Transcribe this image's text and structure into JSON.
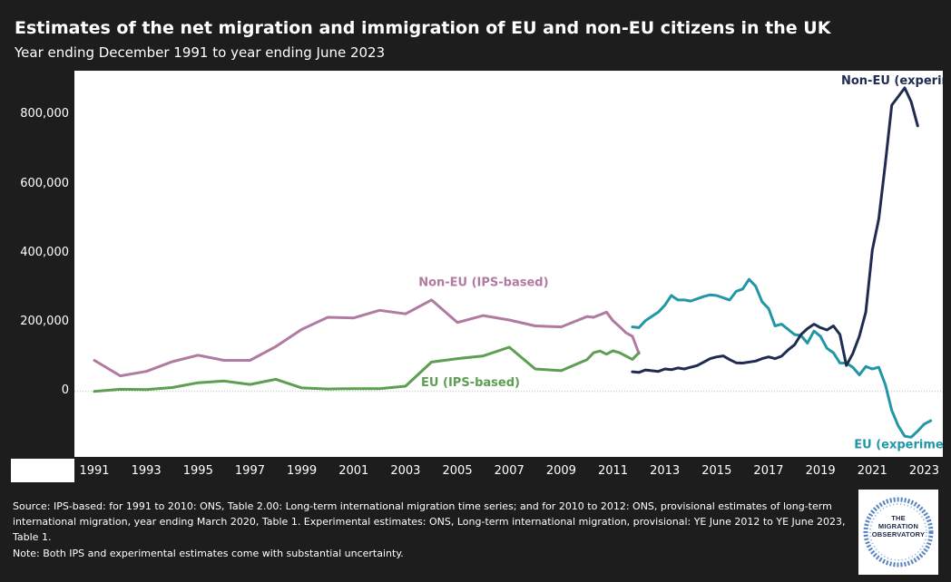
{
  "title": "Estimates of the net migration and immigration of EU and non-EU citizens in the UK",
  "subtitle": "Year ending December 1991 to year ending June 2023",
  "source": "Source: IPS-based: for 1991 to 2010: ONS, Table 2.00: Long-term international migration time series; and for 2010 to 2012: ONS, provisional estimates of long-term international migration, year ending March 2020, Table 1. Experimental estimates: ONS, Long-term international migration, provisional: YE June 2012 to YE June 2023, Table 1.",
  "note": "Note: Both IPS and experimental estimates come with substantial uncertainty.",
  "logo": {
    "line1": "THE",
    "line2": "MIGRATION",
    "line3": "OBSERVATORY"
  },
  "colors": {
    "non_eu_ips": "#b07aa1",
    "eu_ips": "#5d9e52",
    "eu_experimental": "#2196a6",
    "non_eu_experimental": "#1f2c52",
    "plot_bg": "#ffffff",
    "page_bg": "#1d1d1d"
  },
  "chart_data": {
    "type": "line",
    "title": "Estimates of the net migration and immigration of EU and non-EU citizens in the UK",
    "subtitle": "Year ending December 1991 to year ending June 2023",
    "xlabel": "",
    "ylabel": "",
    "xlim": [
      1991,
      2023.3
    ],
    "ylim": [
      -190000,
      930000
    ],
    "yticks": [
      0,
      200000,
      400000,
      600000,
      800000
    ],
    "ytick_labels": [
      "0",
      "200,000",
      "400,000",
      "600,000",
      "800,000"
    ],
    "xticks": [
      1991,
      1993,
      1995,
      1997,
      1999,
      2001,
      2003,
      2005,
      2007,
      2009,
      2011,
      2013,
      2015,
      2017,
      2019,
      2021,
      2023
    ],
    "grid": false,
    "zero_line": true,
    "series": [
      {
        "name": "Non-EU (IPS-based)",
        "color": "#b07aa1",
        "points": [
          [
            1991,
            90000
          ],
          [
            1992,
            45000
          ],
          [
            1993,
            58000
          ],
          [
            1994,
            86000
          ],
          [
            1995,
            105000
          ],
          [
            1996,
            90000
          ],
          [
            1997,
            90000
          ],
          [
            1998,
            130000
          ],
          [
            1999,
            180000
          ],
          [
            2000,
            215000
          ],
          [
            2001,
            213000
          ],
          [
            2002,
            235000
          ],
          [
            2003,
            225000
          ],
          [
            2004,
            265000
          ],
          [
            2005,
            200000
          ],
          [
            2006,
            220000
          ],
          [
            2007,
            207000
          ],
          [
            2008,
            190000
          ],
          [
            2009,
            187000
          ],
          [
            2010,
            217000
          ],
          [
            2010.25,
            215000
          ],
          [
            2010.75,
            230000
          ],
          [
            2011,
            205000
          ],
          [
            2011.25,
            188000
          ],
          [
            2011.5,
            170000
          ],
          [
            2011.75,
            160000
          ],
          [
            2012,
            110000
          ]
        ]
      },
      {
        "name": "EU (IPS-based)",
        "color": "#5d9e52",
        "points": [
          [
            1991,
            0
          ],
          [
            1992,
            6000
          ],
          [
            1993,
            5000
          ],
          [
            1994,
            11000
          ],
          [
            1995,
            25000
          ],
          [
            1996,
            30000
          ],
          [
            1997,
            20000
          ],
          [
            1998,
            35000
          ],
          [
            1999,
            10000
          ],
          [
            2000,
            7000
          ],
          [
            2001,
            8000
          ],
          [
            2002,
            8000
          ],
          [
            2003,
            15000
          ],
          [
            2004,
            85000
          ],
          [
            2005,
            95000
          ],
          [
            2006,
            103000
          ],
          [
            2007,
            128000
          ],
          [
            2008,
            65000
          ],
          [
            2009,
            60000
          ],
          [
            2010,
            92000
          ],
          [
            2010.25,
            112000
          ],
          [
            2010.5,
            117000
          ],
          [
            2010.75,
            108000
          ],
          [
            2011,
            118000
          ],
          [
            2011.25,
            112000
          ],
          [
            2011.75,
            93000
          ],
          [
            2012,
            112000
          ]
        ]
      },
      {
        "name": "EU (experimental)",
        "color": "#2196a6",
        "points": [
          [
            2011.75,
            187000
          ],
          [
            2012,
            185000
          ],
          [
            2012.25,
            205000
          ],
          [
            2012.75,
            230000
          ],
          [
            2013,
            250000
          ],
          [
            2013.25,
            278000
          ],
          [
            2013.5,
            265000
          ],
          [
            2013.75,
            265000
          ],
          [
            2014,
            262000
          ],
          [
            2014.5,
            275000
          ],
          [
            2014.75,
            280000
          ],
          [
            2015,
            278000
          ],
          [
            2015.5,
            265000
          ],
          [
            2015.75,
            290000
          ],
          [
            2016,
            297000
          ],
          [
            2016.25,
            325000
          ],
          [
            2016.5,
            305000
          ],
          [
            2016.75,
            260000
          ],
          [
            2017,
            240000
          ],
          [
            2017.25,
            190000
          ],
          [
            2017.5,
            195000
          ],
          [
            2018,
            165000
          ],
          [
            2018.25,
            162000
          ],
          [
            2018.5,
            140000
          ],
          [
            2018.75,
            175000
          ],
          [
            2019,
            160000
          ],
          [
            2019.25,
            125000
          ],
          [
            2019.5,
            112000
          ],
          [
            2019.75,
            82000
          ],
          [
            2020,
            82000
          ],
          [
            2020.25,
            70000
          ],
          [
            2020.5,
            48000
          ],
          [
            2020.75,
            72000
          ],
          [
            2021,
            65000
          ],
          [
            2021.25,
            70000
          ],
          [
            2021.5,
            20000
          ],
          [
            2021.75,
            -55000
          ],
          [
            2022,
            -100000
          ],
          [
            2022.25,
            -130000
          ],
          [
            2022.5,
            -133000
          ],
          [
            2022.75,
            -115000
          ],
          [
            2023,
            -95000
          ],
          [
            2023.25,
            -85000
          ]
        ]
      },
      {
        "name": "Non-EU (experimental)",
        "color": "#1f2c52",
        "points": [
          [
            2011.75,
            57000
          ],
          [
            2012,
            55000
          ],
          [
            2012.25,
            62000
          ],
          [
            2012.75,
            58000
          ],
          [
            2013,
            65000
          ],
          [
            2013.25,
            63000
          ],
          [
            2013.5,
            68000
          ],
          [
            2013.75,
            65000
          ],
          [
            2014,
            70000
          ],
          [
            2014.25,
            75000
          ],
          [
            2014.5,
            85000
          ],
          [
            2014.75,
            95000
          ],
          [
            2015,
            100000
          ],
          [
            2015.25,
            103000
          ],
          [
            2015.5,
            92000
          ],
          [
            2015.75,
            83000
          ],
          [
            2016,
            82000
          ],
          [
            2016.5,
            88000
          ],
          [
            2016.75,
            95000
          ],
          [
            2017,
            100000
          ],
          [
            2017.25,
            95000
          ],
          [
            2017.5,
            102000
          ],
          [
            2017.75,
            120000
          ],
          [
            2018,
            135000
          ],
          [
            2018.25,
            165000
          ],
          [
            2018.5,
            182000
          ],
          [
            2018.75,
            195000
          ],
          [
            2019,
            185000
          ],
          [
            2019.25,
            178000
          ],
          [
            2019.5,
            190000
          ],
          [
            2019.75,
            165000
          ],
          [
            2020,
            75000
          ],
          [
            2020.25,
            110000
          ],
          [
            2020.5,
            160000
          ],
          [
            2020.75,
            230000
          ],
          [
            2021,
            410000
          ],
          [
            2021.25,
            500000
          ],
          [
            2021.5,
            660000
          ],
          [
            2021.75,
            830000
          ],
          [
            2022,
            855000
          ],
          [
            2022.25,
            880000
          ],
          [
            2022.5,
            840000
          ],
          [
            2022.75,
            770000
          ]
        ]
      }
    ],
    "annotations": [
      {
        "text": "Non-EU (IPS-based)",
        "series": "Non-EU (IPS-based)",
        "x": 2003.5,
        "y": 305000
      },
      {
        "text": "EU (IPS-based)",
        "series": "EU (IPS-based)",
        "x": 2003.6,
        "y": 15000
      },
      {
        "text": "EU (experimental)",
        "series": "EU (experimental)",
        "x": 2020.3,
        "y": -165000
      },
      {
        "text": "Non-EU (experimental)",
        "series": "Non-EU (experimental)",
        "x": 2019.8,
        "y": 890000
      }
    ]
  }
}
